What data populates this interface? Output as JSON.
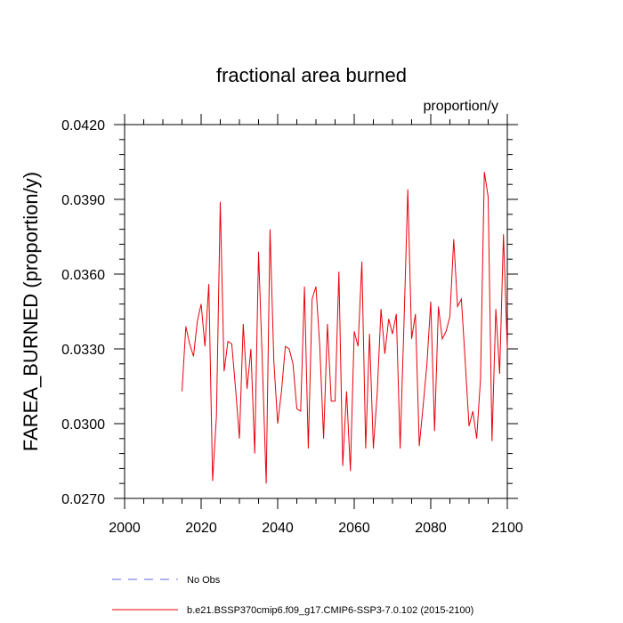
{
  "chart_data": {
    "type": "line",
    "title": "fractional area burned",
    "units": "proportion/y",
    "ylabel": "FAREA_BURNED  (proportion/y)",
    "xlabel": "",
    "xlim": [
      2000,
      2100
    ],
    "ylim": [
      0.027,
      0.042
    ],
    "x_ticks": [
      2000,
      2020,
      2040,
      2060,
      2080,
      2100
    ],
    "x_tick_labels": [
      "2000",
      "2020",
      "2040",
      "2060",
      "2080",
      "2100"
    ],
    "y_ticks": [
      0.027,
      0.03,
      0.033,
      0.036,
      0.039,
      0.042
    ],
    "y_tick_labels": [
      "0.0270",
      "0.0300",
      "0.0330",
      "0.0360",
      "0.0390",
      "0.0420"
    ],
    "grid": false,
    "legend_position": "bottom",
    "legend": [
      {
        "label": "No Obs",
        "color": "#6666dd",
        "style": "dashed"
      },
      {
        "label": "b.e21.BSSP370cmip6.f09_g17.CMIP6-SSP3-7.0.102 (2015-2100)",
        "color": "#e8000b",
        "style": "solid"
      }
    ],
    "series": [
      {
        "name": "b.e21.BSSP370cmip6.f09_g17.CMIP6-SSP3-7.0.102 (2015-2100)",
        "color": "#e8000b",
        "x": [
          2015,
          2016,
          2017,
          2018,
          2019,
          2020,
          2021,
          2022,
          2023,
          2024,
          2025,
          2026,
          2027,
          2028,
          2029,
          2030,
          2031,
          2032,
          2033,
          2034,
          2035,
          2036,
          2037,
          2038,
          2039,
          2040,
          2041,
          2042,
          2043,
          2044,
          2045,
          2046,
          2047,
          2048,
          2049,
          2050,
          2051,
          2052,
          2053,
          2054,
          2055,
          2056,
          2057,
          2058,
          2059,
          2060,
          2061,
          2062,
          2063,
          2064,
          2065,
          2066,
          2067,
          2068,
          2069,
          2070,
          2071,
          2072,
          2073,
          2074,
          2075,
          2076,
          2077,
          2078,
          2079,
          2080,
          2081,
          2082,
          2083,
          2084,
          2085,
          2086,
          2087,
          2088,
          2089,
          2090,
          2091,
          2092,
          2093,
          2094,
          2095,
          2096,
          2097,
          2098,
          2099,
          2100
        ],
        "y": [
          0.0313,
          0.0339,
          0.0332,
          0.0327,
          0.0341,
          0.0348,
          0.0331,
          0.0356,
          0.0277,
          0.0303,
          0.0389,
          0.0321,
          0.0333,
          0.0332,
          0.0314,
          0.0294,
          0.034,
          0.0314,
          0.033,
          0.0288,
          0.0369,
          0.0324,
          0.0276,
          0.0378,
          0.0325,
          0.03,
          0.0313,
          0.0331,
          0.033,
          0.0324,
          0.0306,
          0.0305,
          0.0355,
          0.029,
          0.035,
          0.0355,
          0.0331,
          0.0294,
          0.034,
          0.0309,
          0.0309,
          0.0361,
          0.0283,
          0.0313,
          0.0281,
          0.0337,
          0.0331,
          0.0365,
          0.029,
          0.0336,
          0.029,
          0.0312,
          0.0346,
          0.0328,
          0.0342,
          0.0336,
          0.0344,
          0.029,
          0.034,
          0.0394,
          0.0334,
          0.0344,
          0.0291,
          0.0307,
          0.0324,
          0.0349,
          0.0297,
          0.0347,
          0.0334,
          0.0337,
          0.0343,
          0.0374,
          0.0347,
          0.035,
          0.0325,
          0.0299,
          0.0305,
          0.0294,
          0.0318,
          0.0401,
          0.0391,
          0.0293,
          0.0346,
          0.032,
          0.0376,
          0.033
        ]
      }
    ]
  }
}
